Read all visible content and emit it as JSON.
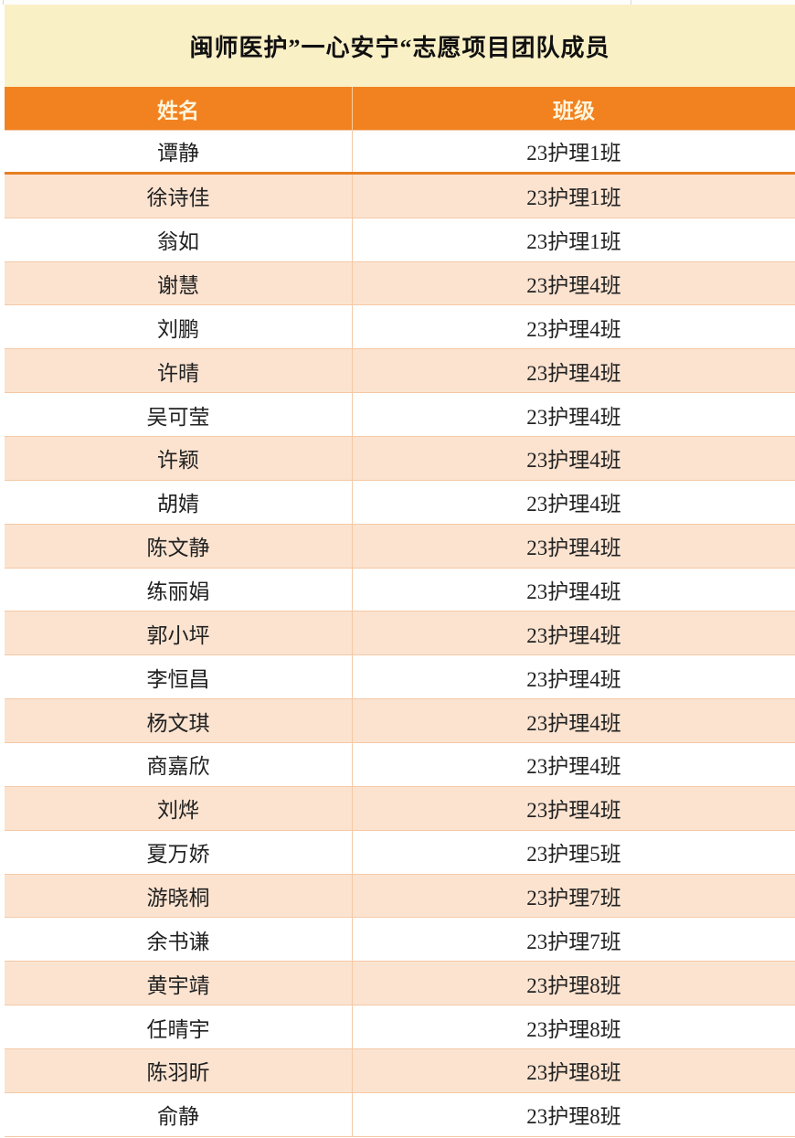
{
  "title": {
    "text": "闽师医护”一心安宁“志愿项目团队成员"
  },
  "table": {
    "columns": [
      {
        "label": "姓名"
      },
      {
        "label": "班级"
      }
    ],
    "rows": [
      {
        "name": "谭静",
        "class": "23护理1班"
      },
      {
        "name": "徐诗佳",
        "class": "23护理1班"
      },
      {
        "name": "翁如",
        "class": "23护理1班"
      },
      {
        "name": "谢慧",
        "class": "23护理4班"
      },
      {
        "name": "刘鹏",
        "class": "23护理4班"
      },
      {
        "name": "许晴",
        "class": "23护理4班"
      },
      {
        "name": "吴可莹",
        "class": "23护理4班"
      },
      {
        "name": "许颖",
        "class": "23护理4班"
      },
      {
        "name": "胡婧",
        "class": "23护理4班"
      },
      {
        "name": "陈文静",
        "class": "23护理4班"
      },
      {
        "name": "练丽娟",
        "class": "23护理4班"
      },
      {
        "name": "郭小坪",
        "class": "23护理4班"
      },
      {
        "name": "李恒昌",
        "class": "23护理4班"
      },
      {
        "name": "杨文琪",
        "class": "23护理4班"
      },
      {
        "name": "商嘉欣",
        "class": "23护理4班"
      },
      {
        "name": "刘烨",
        "class": "23护理4班"
      },
      {
        "name": "夏万娇",
        "class": "23护理5班"
      },
      {
        "name": "游晓桐",
        "class": "23护理7班"
      },
      {
        "name": "余书谦",
        "class": "23护理7班"
      },
      {
        "name": "黄宇靖",
        "class": "23护理8班"
      },
      {
        "name": "任晴宇",
        "class": "23护理8班"
      },
      {
        "name": "陈羽昕",
        "class": "23护理8班"
      },
      {
        "name": "俞静",
        "class": "23护理8班"
      }
    ]
  },
  "colors": {
    "title_bg": "#FAF0C6",
    "header_bg": "#F28220",
    "header_text": "#FDF5DC",
    "row_alt_bg": "#FBE3D0",
    "border": "#F5C9A6",
    "divider_orange": "#E87E22",
    "body_text": "#212121"
  }
}
